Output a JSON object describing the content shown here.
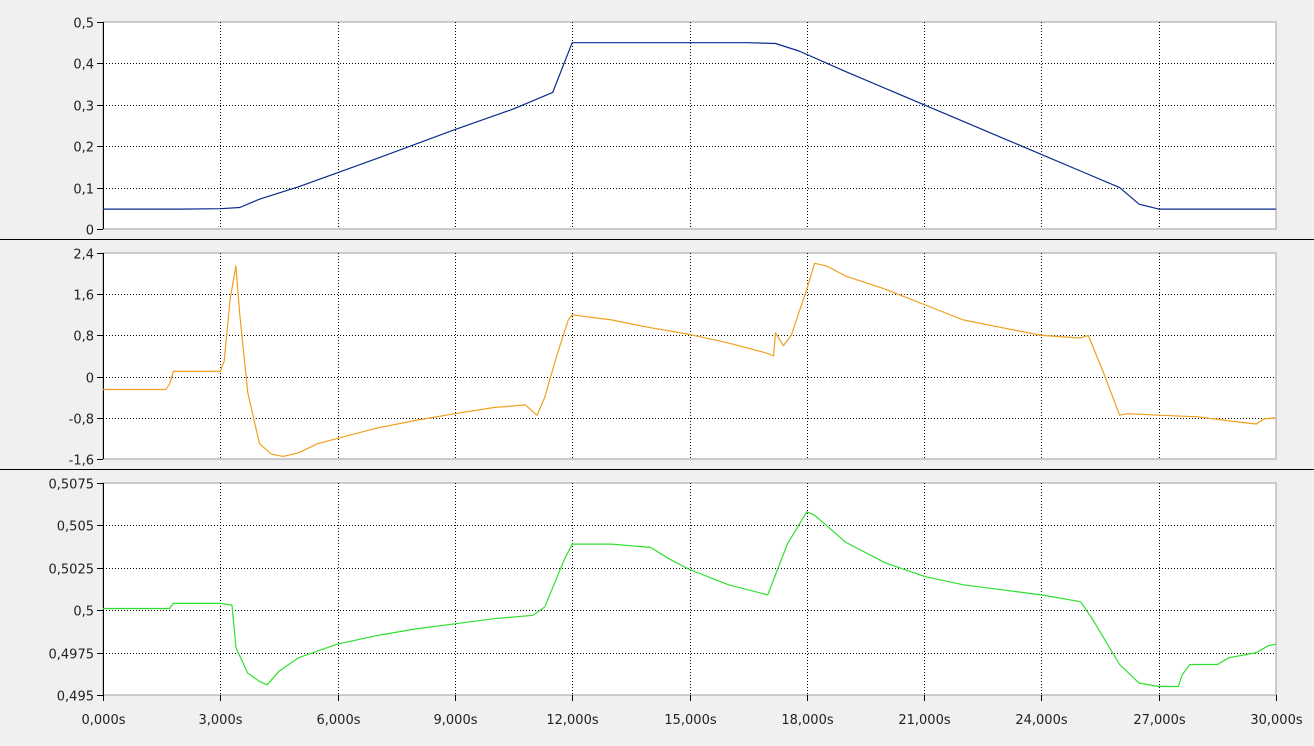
{
  "chart_data": [
    {
      "type": "line",
      "ylim": [
        0,
        0.5
      ],
      "yticks": [
        "0",
        "0,1",
        "0,2",
        "0,3",
        "0,4",
        "0,5"
      ],
      "ytick_values": [
        0,
        0.1,
        0.2,
        0.3,
        0.4,
        0.5
      ],
      "grid": true,
      "series": [
        {
          "color": "#0a2a8a",
          "x": [
            0,
            2000,
            3000,
            3500,
            4000,
            5000,
            7000,
            9000,
            10500,
            11500,
            12000,
            15000,
            16500,
            17200,
            17800,
            19000,
            21000,
            23000,
            25000,
            26000,
            26500,
            27000,
            30000
          ],
          "y": [
            0.048,
            0.048,
            0.049,
            0.052,
            0.072,
            0.102,
            0.17,
            0.24,
            0.29,
            0.33,
            0.45,
            0.45,
            0.45,
            0.448,
            0.43,
            0.38,
            0.3,
            0.22,
            0.14,
            0.1,
            0.06,
            0.048,
            0.048
          ]
        }
      ]
    },
    {
      "type": "line",
      "ylim": [
        -1.6,
        2.4
      ],
      "yticks": [
        "-1,6",
        "-0,8",
        "0",
        "0,8",
        "1,6",
        "2,4"
      ],
      "ytick_values": [
        -1.6,
        -0.8,
        0,
        0.8,
        1.6,
        2.4
      ],
      "grid": true,
      "series": [
        {
          "color": "#f0a020",
          "x": [
            0,
            1500,
            1600,
            1700,
            1800,
            2000,
            2500,
            3000,
            3100,
            3250,
            3400,
            3500,
            3700,
            4000,
            4300,
            4600,
            5000,
            5500,
            6000,
            7000,
            8000,
            9000,
            10000,
            10800,
            11100,
            11300,
            11600,
            11900,
            12000,
            13000,
            14000,
            15000,
            16000,
            17000,
            17150,
            17200,
            17400,
            17600,
            18000,
            18200,
            18500,
            19000,
            20000,
            21000,
            22000,
            23000,
            24000,
            25000,
            25200,
            25600,
            26000,
            26200,
            27000,
            28000,
            29000,
            29500,
            29700,
            30000
          ],
          "y": [
            -0.25,
            -0.25,
            -0.25,
            -0.15,
            0.1,
            0.1,
            0.1,
            0.1,
            0.3,
            1.5,
            2.15,
            1.2,
            -0.3,
            -1.3,
            -1.5,
            -1.55,
            -1.48,
            -1.3,
            -1.2,
            -1.0,
            -0.85,
            -0.72,
            -0.6,
            -0.55,
            -0.75,
            -0.4,
            0.4,
            1.1,
            1.2,
            1.1,
            0.95,
            0.82,
            0.65,
            0.45,
            0.4,
            0.85,
            0.6,
            0.8,
            1.7,
            2.2,
            2.15,
            1.95,
            1.7,
            1.4,
            1.1,
            0.95,
            0.8,
            0.75,
            0.8,
            0.05,
            -0.75,
            -0.72,
            -0.75,
            -0.78,
            -0.88,
            -0.92,
            -0.82,
            -0.8
          ]
        }
      ]
    },
    {
      "type": "line",
      "ylim": [
        0.495,
        0.5075
      ],
      "yticks": [
        "0,495",
        "0,4975",
        "0,5",
        "0,5025",
        "0,505",
        "0,5075"
      ],
      "ytick_values": [
        0.495,
        0.4975,
        0.5,
        0.5025,
        0.505,
        0.5075
      ],
      "grid": true,
      "xticks": [
        "0,000s",
        "3,000s",
        "6,000s",
        "9,000s",
        "12,000s",
        "15,000s",
        "18,000s",
        "21,000s",
        "24,000s",
        "27,000s",
        "30,000s"
      ],
      "xtick_values": [
        0,
        3000,
        6000,
        9000,
        12000,
        15000,
        18000,
        21000,
        24000,
        27000,
        30000
      ],
      "series": [
        {
          "color": "#2ee02e",
          "x": [
            0,
            1700,
            1800,
            3000,
            3300,
            3400,
            3700,
            4000,
            4200,
            4500,
            5000,
            6000,
            7000,
            8000,
            9000,
            10000,
            11000,
            11300,
            11800,
            12000,
            13000,
            14000,
            14500,
            15000,
            16000,
            17000,
            17500,
            18000,
            18200,
            19000,
            20000,
            21000,
            22000,
            23000,
            24000,
            25000,
            25300,
            26000,
            26500,
            27000,
            27500,
            27600,
            27800,
            28500,
            28800,
            29500,
            29800,
            30000
          ],
          "y": [
            0.5001,
            0.5001,
            0.5004,
            0.5004,
            0.5003,
            0.4978,
            0.4963,
            0.4958,
            0.4956,
            0.4964,
            0.4972,
            0.498,
            0.4985,
            0.4989,
            0.4992,
            0.4995,
            0.4997,
            0.5002,
            0.503,
            0.5039,
            0.5039,
            0.5037,
            0.503,
            0.5024,
            0.5015,
            0.5009,
            0.5039,
            0.5058,
            0.5056,
            0.504,
            0.5028,
            0.502,
            0.5015,
            0.5012,
            0.5009,
            0.5005,
            0.4995,
            0.4968,
            0.4957,
            0.4955,
            0.4955,
            0.4962,
            0.4968,
            0.4968,
            0.4972,
            0.4975,
            0.4979,
            0.498
          ]
        }
      ]
    }
  ]
}
